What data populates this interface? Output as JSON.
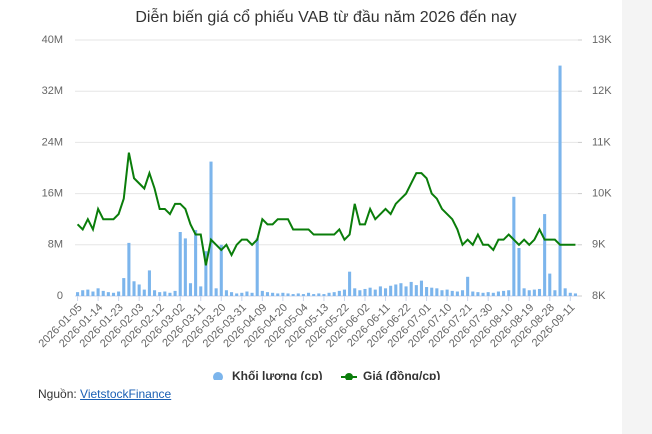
{
  "chart_data": {
    "type": "bar-line",
    "title": "Diễn biến giá cổ phiếu VAB từ đầu năm 2026 đến nay",
    "categories": [
      "2026-01-05",
      null,
      null,
      null,
      "2026-01-14",
      null,
      null,
      null,
      "2026-01-23",
      null,
      null,
      null,
      "2026-02-03",
      null,
      null,
      null,
      "2026-02-12",
      null,
      null,
      null,
      "2026-03-02",
      null,
      null,
      null,
      "2026-03-11",
      null,
      null,
      null,
      "2026-03-20",
      null,
      null,
      null,
      "2026-03-31",
      null,
      null,
      null,
      "2026-04-09",
      null,
      null,
      null,
      "2026-04-20",
      null,
      null,
      null,
      "2026-05-04",
      null,
      null,
      null,
      "2026-05-13",
      null,
      null,
      null,
      "2026-05-22",
      null,
      null,
      null,
      "2026-06-02",
      null,
      null,
      null,
      "2026-06-11",
      null,
      null,
      null,
      "2026-06-22",
      null,
      null,
      null,
      "2026-07-01",
      null,
      null,
      null,
      "2026-07-10",
      null,
      null,
      null,
      "2026-07-21",
      null,
      null,
      null,
      "2026-07-30",
      null,
      null,
      null,
      "2026-08-10",
      null,
      null,
      null,
      "2026-08-19",
      null,
      null,
      null,
      "2026-08-28",
      null,
      null,
      null,
      "2026-09-11",
      null
    ],
    "series": [
      {
        "name": "Khối lượng (cp)",
        "type": "bar",
        "color": "#7cb5ec",
        "values": [
          600000,
          900000,
          1000000,
          700000,
          1200000,
          800000,
          600000,
          500000,
          700000,
          2800000,
          8300000,
          2300000,
          1800000,
          1000000,
          4000000,
          900000,
          600000,
          700000,
          500000,
          800000,
          10000000,
          9000000,
          2000000,
          10300000,
          1500000,
          7000000,
          21000000,
          1200000,
          8000000,
          900000,
          600000,
          400000,
          500000,
          700000,
          500000,
          9000000,
          800000,
          600000,
          500000,
          400000,
          500000,
          400000,
          300000,
          400000,
          300000,
          500000,
          300000,
          400000,
          300000,
          500000,
          600000,
          800000,
          1000000,
          3800000,
          1200000,
          900000,
          1100000,
          1300000,
          1000000,
          1500000,
          1200000,
          1600000,
          1800000,
          2000000,
          1500000,
          2200000,
          1700000,
          2400000,
          1400000,
          1300000,
          1200000,
          900000,
          1000000,
          800000,
          700000,
          900000,
          3000000,
          700000,
          600000,
          500000,
          600000,
          500000,
          700000,
          800000,
          900000,
          15500000,
          7500000,
          1200000,
          900000,
          1000000,
          1100000,
          12800000,
          3500000,
          900000,
          36000000,
          1200000,
          500000,
          400000
        ]
      },
      {
        "name": "Giá (đồng/cp)",
        "type": "line",
        "axis": "y2",
        "color": "#0a7d0a",
        "values": [
          9400,
          9300,
          9500,
          9300,
          9700,
          9500,
          9500,
          9500,
          9600,
          9900,
          10800,
          10300,
          10200,
          10100,
          10400,
          10100,
          9700,
          9700,
          9600,
          9800,
          9800,
          9700,
          9400,
          9200,
          9200,
          8600,
          9100,
          9000,
          8900,
          9000,
          8800,
          9000,
          9100,
          9100,
          9000,
          9100,
          9500,
          9400,
          9400,
          9500,
          9500,
          9500,
          9300,
          9300,
          9300,
          9300,
          9200,
          9200,
          9200,
          9200,
          9200,
          9300,
          9100,
          9200,
          9800,
          9400,
          9400,
          9700,
          9500,
          9600,
          9700,
          9600,
          9800,
          9900,
          10000,
          10200,
          10400,
          10400,
          10300,
          10000,
          9900,
          9700,
          9600,
          9500,
          9300,
          9000,
          9100,
          9000,
          9200,
          9000,
          9000,
          8900,
          9100,
          9100,
          9200,
          9100,
          9000,
          9100,
          9000,
          9100,
          9300,
          9100,
          9100,
          9100,
          9000,
          9000,
          9000,
          9000
        ]
      }
    ],
    "ylim": [
      0,
      40000000
    ],
    "yticks": [
      0,
      {
        "value": 8000000,
        "label": "8M"
      },
      {
        "value": 16000000,
        "label": "16M"
      },
      {
        "value": 24000000,
        "label": "24M"
      },
      {
        "value": 32000000,
        "label": "32M"
      },
      {
        "value": 40000000,
        "label": "40M"
      }
    ],
    "y2lim": [
      8000,
      13000
    ],
    "y2ticks": [
      {
        "value": 8000,
        "label": "8K"
      },
      {
        "value": 9000,
        "label": "9K"
      },
      {
        "value": 10000,
        "label": "10K"
      },
      {
        "value": 11000,
        "label": "11K"
      },
      {
        "value": 12000,
        "label": "12K"
      },
      {
        "value": 13000,
        "label": "13K"
      }
    ],
    "grid": true,
    "legend": "bottom",
    "source": {
      "label": "Nguồn:",
      "link": "VietstockFinance"
    }
  }
}
